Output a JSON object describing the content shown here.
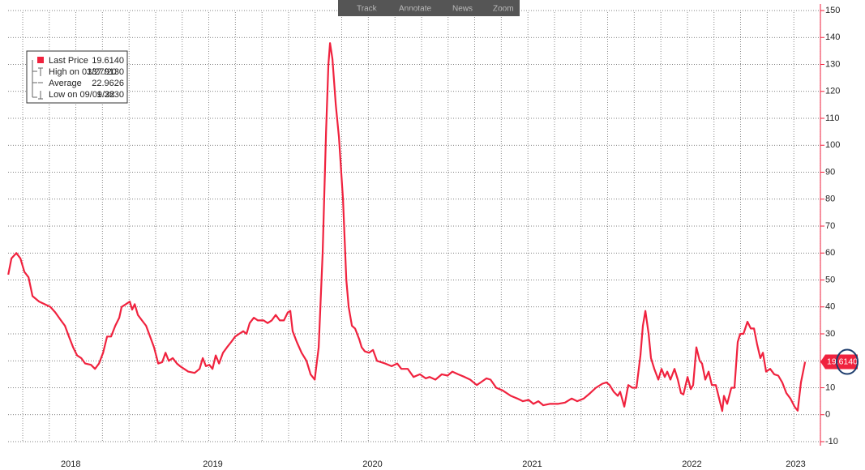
{
  "chart_data": {
    "type": "line",
    "x": [
      2018.219,
      2018.239,
      2018.27,
      2018.295,
      2018.32,
      2018.346,
      2018.371,
      2018.412,
      2018.447,
      2018.483,
      2018.513,
      2018.549,
      2018.574,
      2018.599,
      2018.625,
      2018.65,
      2018.676,
      2018.701,
      2018.737,
      2018.762,
      2018.787,
      2018.813,
      2018.838,
      2018.863,
      2018.889,
      2018.914,
      2018.929,
      2018.955,
      2018.98,
      2018.995,
      2019.011,
      2019.031,
      2019.056,
      2019.082,
      2019.107,
      2019.132,
      2019.158,
      2019.183,
      2019.204,
      2019.224,
      2019.249,
      2019.275,
      2019.295,
      2019.32,
      2019.346,
      2019.386,
      2019.417,
      2019.437,
      2019.457,
      2019.478,
      2019.498,
      2019.518,
      2019.539,
      2019.564,
      2019.589,
      2019.615,
      2019.64,
      2019.665,
      2019.691,
      2019.711,
      2019.731,
      2019.757,
      2019.782,
      2019.818,
      2019.843,
      2019.869,
      2019.894,
      2019.919,
      2019.945,
      2019.97,
      2019.985,
      2020.0,
      2020.026,
      2020.056,
      2020.087,
      2020.112,
      2020.138,
      2020.163,
      2020.188,
      2020.209,
      2020.224,
      2020.234,
      2020.249,
      2020.27,
      2020.29,
      2020.315,
      2020.336,
      2020.351,
      2020.371,
      2020.391,
      2020.417,
      2020.432,
      2020.452,
      2020.478,
      2020.503,
      2020.528,
      2020.579,
      2020.62,
      2020.655,
      2020.681,
      2020.721,
      2020.757,
      2020.797,
      2020.833,
      2020.858,
      2020.894,
      2020.934,
      2020.97,
      2021.0,
      2021.036,
      2021.077,
      2021.112,
      2021.153,
      2021.178,
      2021.214,
      2021.239,
      2021.275,
      2021.315,
      2021.366,
      2021.407,
      2021.442,
      2021.478,
      2021.508,
      2021.539,
      2021.569,
      2021.61,
      2021.66,
      2021.706,
      2021.747,
      2021.782,
      2021.823,
      2021.863,
      2021.899,
      2021.94,
      2021.965,
      2021.985,
      2022.011,
      2022.036,
      2022.051,
      2022.077,
      2022.102,
      2022.127,
      2022.153,
      2022.178,
      2022.193,
      2022.209,
      2022.229,
      2022.244,
      2022.265,
      2022.29,
      2022.31,
      2022.33,
      2022.346,
      2022.366,
      2022.391,
      2022.412,
      2022.432,
      2022.447,
      2022.473,
      2022.493,
      2022.508,
      2022.528,
      2022.549,
      2022.564,
      2022.584,
      2022.605,
      2022.625,
      2022.65,
      2022.69,
      2022.701,
      2022.721,
      2022.747,
      2022.767,
      2022.787,
      2022.803,
      2022.823,
      2022.848,
      2022.869,
      2022.889,
      2022.909,
      2022.929,
      2022.945,
      2022.965,
      2022.99,
      2023.016,
      2023.041,
      2023.066,
      2023.092,
      2023.117,
      2023.143,
      2023.163,
      2023.183,
      2023.209
    ],
    "series": [
      {
        "name": "Last Price",
        "color": "#f0223e",
        "last_value_label": "19.6140",
        "values": [
          52,
          58,
          60,
          58,
          53,
          51,
          44,
          42,
          41,
          40,
          38,
          35,
          33,
          29,
          25,
          22,
          21,
          19,
          18.5,
          17,
          19,
          23,
          29,
          29,
          33,
          36,
          40,
          41,
          42,
          39,
          41,
          37,
          35,
          33,
          29,
          25,
          19,
          19.5,
          23,
          20,
          21,
          19,
          18,
          17,
          16,
          15.5,
          17,
          21,
          18,
          18.5,
          17,
          22,
          19,
          23,
          25,
          27,
          29,
          30,
          31,
          30,
          34,
          36,
          35,
          35,
          34,
          35,
          37,
          35,
          35,
          38,
          38.5,
          31,
          27,
          23,
          20,
          15,
          13,
          25,
          60,
          105,
          130,
          137.913,
          132,
          115,
          103,
          80,
          50,
          40,
          33,
          32,
          28,
          25,
          23.5,
          23,
          24,
          20,
          19,
          18,
          19,
          17,
          17,
          14,
          15,
          13.5,
          14,
          13,
          15,
          14.5,
          16,
          15,
          14,
          13,
          11,
          12,
          13.5,
          13,
          10,
          9,
          7,
          6,
          5,
          5.5,
          4,
          5,
          3.5,
          4,
          4,
          4.5,
          6,
          5,
          6,
          8,
          10,
          11.5,
          12,
          11,
          8.5,
          7,
          8.5,
          3,
          11,
          10,
          10,
          22,
          33,
          38.5,
          30,
          21,
          17,
          13,
          17,
          14,
          16,
          13,
          17,
          13,
          8,
          7.5,
          14,
          9.5,
          11,
          25,
          20,
          19,
          13,
          16,
          11,
          11,
          1.383,
          7,
          4,
          10,
          10,
          27,
          30,
          30,
          34.5,
          32,
          32,
          26,
          21,
          23,
          16,
          17,
          15,
          14.5,
          12,
          8,
          6,
          3,
          1.5,
          12,
          19.614
        ]
      }
    ],
    "stats": [
      {
        "label": "High on 03/27/20",
        "value": "137.9130"
      },
      {
        "label": "Average",
        "value": "22.9626"
      },
      {
        "label": "Low on 09/09/22",
        "value": "1.3830"
      }
    ],
    "xlim": [
      2018.218,
      2023.305
    ],
    "xticks": [
      {
        "value": 2018.61,
        "label": "2018"
      },
      {
        "value": 2019.5,
        "label": "2019"
      },
      {
        "value": 2020.5,
        "label": "2020"
      },
      {
        "value": 2021.5,
        "label": "2021"
      },
      {
        "value": 2022.5,
        "label": "2022"
      },
      {
        "value": 2023.15,
        "label": "2023"
      }
    ],
    "ylim": [
      -10,
      150
    ],
    "yticks": [
      -10,
      0,
      10,
      20,
      30,
      40,
      50,
      60,
      70,
      80,
      90,
      100,
      110,
      120,
      130,
      140,
      150
    ],
    "grid": true
  },
  "toolbar": [
    "Track",
    "Annotate",
    "News",
    "Zoom"
  ]
}
